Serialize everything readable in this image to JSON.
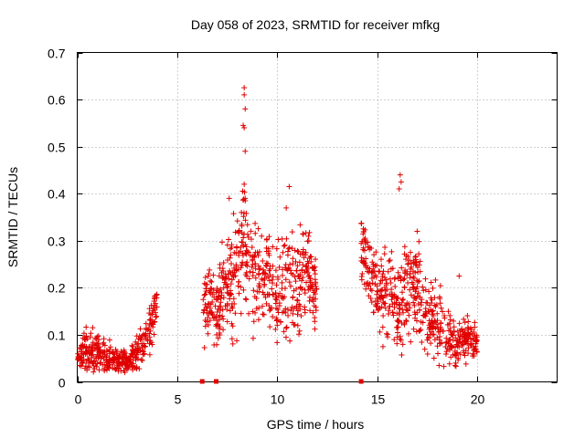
{
  "chart_data": {
    "type": "scatter",
    "title": "Day 058 of 2023, SRMTID for receiver mfkg",
    "xlabel": "GPS time / hours",
    "ylabel": "SRMTID / TECUs",
    "xlim": [
      0,
      24
    ],
    "ylim": [
      0,
      0.7
    ],
    "xticks": [
      0,
      5,
      10,
      15,
      20
    ],
    "yticks": [
      0,
      0.1,
      0.2,
      0.3,
      0.4,
      0.5,
      0.6,
      0.7
    ],
    "xtick_labels": [
      "0",
      "5",
      "10",
      "15",
      "20"
    ],
    "ytick_labels": [
      "0",
      "0.1",
      "0.2",
      "0.3",
      "0.4",
      "0.5",
      "0.6",
      "0.7"
    ],
    "grid": true,
    "marker": "+",
    "color": "#e00000",
    "series": [
      {
        "name": "SRMTID",
        "profile": [
          [
            0.0,
            0.05,
            0.015
          ],
          [
            0.5,
            0.07,
            0.03
          ],
          [
            1.0,
            0.06,
            0.025
          ],
          [
            1.5,
            0.055,
            0.02
          ],
          [
            2.0,
            0.045,
            0.015
          ],
          [
            2.5,
            0.04,
            0.015
          ],
          [
            3.0,
            0.06,
            0.025
          ],
          [
            3.5,
            0.1,
            0.03
          ],
          [
            4.0,
            0.16,
            0.03
          ],
          [
            6.3,
            0.17,
            0.05
          ],
          [
            7.0,
            0.15,
            0.05
          ],
          [
            7.5,
            0.2,
            0.07
          ],
          [
            8.0,
            0.25,
            0.08
          ],
          [
            8.3,
            0.3,
            0.1
          ],
          [
            9.0,
            0.22,
            0.07
          ],
          [
            9.5,
            0.25,
            0.06
          ],
          [
            10.0,
            0.18,
            0.06
          ],
          [
            10.5,
            0.22,
            0.07
          ],
          [
            11.0,
            0.2,
            0.06
          ],
          [
            11.5,
            0.25,
            0.06
          ],
          [
            12.0,
            0.18,
            0.05
          ],
          [
            14.2,
            0.3,
            0.05
          ],
          [
            14.5,
            0.25,
            0.05
          ],
          [
            15.0,
            0.18,
            0.05
          ],
          [
            15.5,
            0.2,
            0.06
          ],
          [
            16.0,
            0.15,
            0.05
          ],
          [
            16.5,
            0.22,
            0.07
          ],
          [
            17.0,
            0.17,
            0.06
          ],
          [
            17.5,
            0.15,
            0.05
          ],
          [
            18.0,
            0.12,
            0.04
          ],
          [
            18.5,
            0.1,
            0.04
          ],
          [
            19.0,
            0.08,
            0.03
          ],
          [
            19.5,
            0.1,
            0.03
          ],
          [
            20.0,
            0.08,
            0.02
          ]
        ],
        "segments": [
          [
            0.0,
            4.0
          ],
          [
            6.3,
            12.0
          ],
          [
            14.2,
            20.0
          ]
        ],
        "outliers": [
          [
            8.35,
            0.625
          ],
          [
            8.35,
            0.61
          ],
          [
            8.4,
            0.58
          ],
          [
            8.3,
            0.545
          ],
          [
            8.35,
            0.54
          ],
          [
            8.4,
            0.49
          ],
          [
            8.35,
            0.42
          ],
          [
            8.4,
            0.39
          ],
          [
            7.6,
            0.39
          ],
          [
            10.6,
            0.415
          ],
          [
            16.15,
            0.44
          ],
          [
            16.2,
            0.425
          ],
          [
            16.1,
            0.41
          ],
          [
            17.0,
            0.32
          ],
          [
            19.1,
            0.225
          ]
        ]
      }
    ],
    "gap_markers": [
      6.25,
      6.95,
      14.2
    ]
  }
}
